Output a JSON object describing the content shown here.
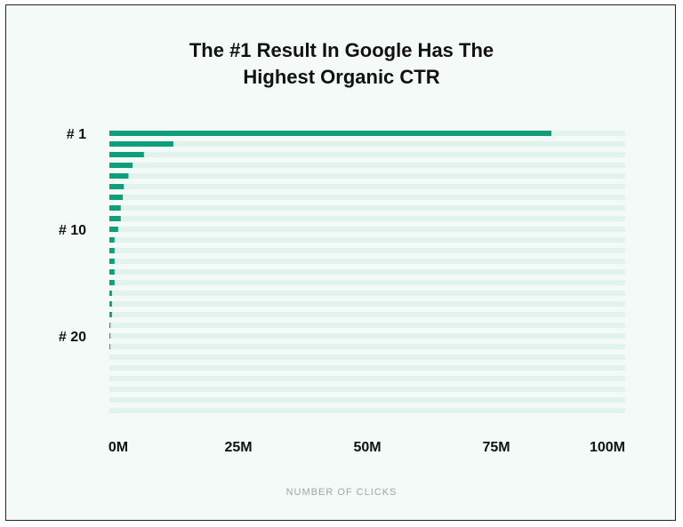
{
  "chart_data": {
    "type": "bar",
    "orientation": "horizontal",
    "title_lines": [
      "The #1 Result In Google Has The",
      "Highest Organic CTR"
    ],
    "xlabel": "NUMBER OF CLICKS",
    "xlim": [
      0,
      100
    ],
    "x_ticks": [
      0,
      25,
      50,
      75,
      100
    ],
    "x_tick_labels": [
      "0M",
      "25M",
      "50M",
      "75M",
      "100M"
    ],
    "y_tick_labels": [
      {
        "rank": 1,
        "label": "# 1"
      },
      {
        "rank": 10,
        "label": "# 10"
      },
      {
        "rank": 20,
        "label": "# 20"
      }
    ],
    "categories": [
      1,
      2,
      3,
      4,
      5,
      6,
      7,
      8,
      9,
      10,
      11,
      12,
      13,
      14,
      15,
      16,
      17,
      18,
      19,
      20,
      21,
      22,
      23,
      24,
      25,
      26,
      27
    ],
    "values": [
      85.7,
      12.4,
      6.7,
      4.5,
      3.7,
      2.8,
      2.6,
      2.2,
      2.2,
      1.7,
      1.0,
      1.0,
      1.0,
      1.0,
      1.0,
      0.5,
      0.5,
      0.5,
      0.2,
      0.2,
      0.1,
      0,
      0,
      0,
      0,
      0,
      0
    ],
    "unit": "M",
    "grid": false,
    "colors": {
      "bar": "#0f9e7a",
      "track": "#e2f3ee",
      "background": "#f3faf8"
    }
  }
}
